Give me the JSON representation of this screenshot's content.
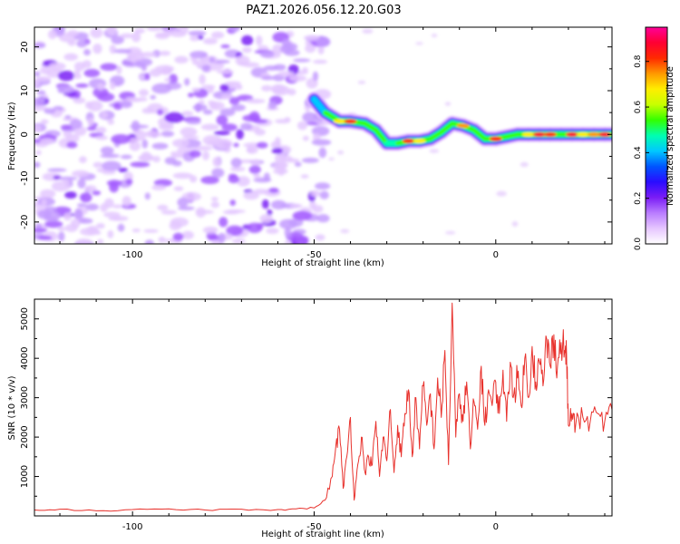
{
  "title": "PAZ1.2026.056.12.20.G03",
  "chart_data": [
    {
      "type": "heatmap",
      "title": "PAZ1.2026.056.12.20.G03",
      "xlabel": "Height of straight line (km)",
      "ylabel": "Frequency (Hz)",
      "xlim": [
        -127,
        32
      ],
      "ylim": [
        -25,
        24.5
      ],
      "x_ticks": [
        -100,
        -50,
        0
      ],
      "x_tick_labels": [
        "-100",
        "-50",
        "0"
      ],
      "y_ticks": [
        -20,
        -10,
        0,
        10,
        20
      ],
      "y_tick_labels": [
        "-20",
        "-10",
        "0",
        "10",
        "20"
      ],
      "noise_region_x": [
        -127,
        -47
      ],
      "ridge": {
        "x": [
          -50,
          -47,
          -43,
          -40,
          -36,
          -33,
          -30,
          -27,
          -24,
          -21,
          -18,
          -15,
          -12,
          -9,
          -6,
          -3,
          0,
          3,
          6,
          9,
          12,
          15,
          18,
          21,
          24,
          27,
          30,
          32
        ],
        "frequency": [
          8,
          5,
          3,
          3,
          2.5,
          1,
          -2,
          -2,
          -1.5,
          -1.5,
          -1,
          0.5,
          2.5,
          2,
          1,
          -1,
          -1,
          -0.5,
          0,
          0,
          0,
          0,
          0,
          0,
          0,
          0,
          0,
          0
        ],
        "amplitude": [
          0.25,
          0.55,
          0.7,
          0.85,
          0.65,
          0.6,
          0.5,
          0.55,
          0.85,
          0.7,
          0.55,
          0.6,
          0.5,
          0.8,
          0.6,
          0.55,
          0.85,
          0.6,
          0.6,
          0.7,
          0.9,
          0.85,
          0.65,
          0.9,
          0.7,
          0.75,
          0.9,
          0.6
        ]
      },
      "colorbar": {
        "label": "Normalized spectral amplitude",
        "range": [
          0,
          0.95
        ],
        "ticks": [
          0.0,
          0.2,
          0.4,
          0.6,
          0.8
        ],
        "tick_labels": [
          "0.0",
          "0.2",
          "0.4",
          "0.6",
          "0.8"
        ],
        "colors": [
          "#ffffff",
          "#e6c6ff",
          "#b97cff",
          "#7a1cf5",
          "#2a0cff",
          "#0055ff",
          "#00c8ff",
          "#00ffb0",
          "#33ff00",
          "#c8ff00",
          "#ffee00",
          "#ff9900",
          "#ff2a00",
          "#ff0033",
          "#ff0099"
        ]
      }
    },
    {
      "type": "line",
      "xlabel": "Height of straight line (km)",
      "ylabel": "SNR (10 * v/v)",
      "xlim": [
        -127,
        32
      ],
      "ylim": [
        0,
        5500
      ],
      "x_ticks": [
        -100,
        -50,
        0
      ],
      "x_tick_labels": [
        "-100",
        "-50",
        "0"
      ],
      "y_ticks": [
        1000,
        2000,
        3000,
        4000,
        5000
      ],
      "y_tick_labels": [
        "1000",
        "2000",
        "3000",
        "4000",
        "5000"
      ],
      "series": [
        {
          "name": "SNR",
          "color": "#e8322d",
          "x": [
            -127,
            -120,
            -110,
            -100,
            -90,
            -80,
            -70,
            -60,
            -55,
            -50,
            -47,
            -45,
            -44,
            -43,
            -42,
            -41,
            -40,
            -39,
            -38,
            -37,
            -36,
            -35,
            -34,
            -33,
            -32,
            -31,
            -30,
            -29,
            -28,
            -27,
            -26,
            -25,
            -24,
            -23,
            -22,
            -21,
            -20,
            -19,
            -18,
            -17,
            -16,
            -15,
            -14,
            -13,
            -12,
            -11,
            -10,
            -9,
            -8,
            -7,
            -6,
            -5,
            -4,
            -3,
            -2,
            -1,
            0,
            1,
            2,
            3,
            4,
            5,
            6,
            7,
            8,
            9,
            10,
            11,
            12,
            13,
            14,
            15,
            16,
            17,
            18,
            19,
            19.5,
            20,
            21,
            22,
            24,
            26,
            28,
            30,
            32
          ],
          "y": [
            150,
            170,
            130,
            160,
            180,
            150,
            170,
            160,
            180,
            200,
            400,
            1000,
            1800,
            2200,
            700,
            1500,
            2500,
            400,
            1300,
            2000,
            1100,
            1500,
            1300,
            2400,
            1000,
            2000,
            1400,
            2700,
            1100,
            2300,
            1500,
            2600,
            3200,
            1500,
            3000,
            1700,
            3300,
            2300,
            3100,
            1700,
            3500,
            2500,
            4200,
            1300,
            5400,
            2000,
            3100,
            2400,
            3400,
            1700,
            2900,
            2200,
            3800,
            2300,
            3200,
            2800,
            3400,
            2600,
            3700,
            2400,
            3900,
            3100,
            3500,
            2800,
            4000,
            3000,
            4300,
            3400,
            3900,
            3300,
            4500,
            3800,
            4600,
            3800,
            4400,
            4200,
            4100,
            2300,
            2600,
            2300,
            2500,
            2400,
            2600,
            2400,
            2700
          ]
        }
      ]
    }
  ]
}
